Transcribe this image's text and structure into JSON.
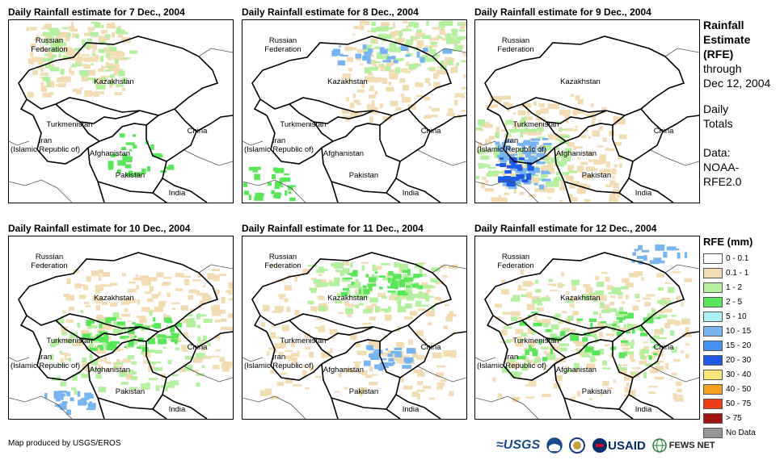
{
  "panels": [
    {
      "title": "Daily Rainfall estimate for 7 Dec., 2004",
      "day": 7
    },
    {
      "title": "Daily Rainfall estimate for 8 Dec., 2004",
      "day": 8
    },
    {
      "title": "Daily Rainfall estimate for 9 Dec., 2004",
      "day": 9
    },
    {
      "title": "Daily Rainfall estimate for 10 Dec., 2004",
      "day": 10
    },
    {
      "title": "Daily Rainfall estimate for 11 Dec., 2004",
      "day": 11
    },
    {
      "title": "Daily Rainfall estimate for 12 Dec., 2004",
      "day": 12
    }
  ],
  "countries": {
    "russia": "Russian\nFederation",
    "kazakhstan": "Kazakhstan",
    "turkmenistan": "Turkmenistan",
    "iran": "Iran\n(Islamic Republic of)",
    "afghanistan": "Afghanistan",
    "pakistan": "Pakistan",
    "china": "China",
    "india": "India"
  },
  "sidebar": {
    "head1": "Rainfall",
    "head2": "Estimate",
    "head3": "(RFE)",
    "through1": "through",
    "through2": "Dec 12, 2004",
    "totals1": "Daily",
    "totals2": "Totals",
    "data1": "Data:",
    "data2": "NOAA-",
    "data3": "RFE2.0"
  },
  "legend": {
    "title": "RFE (mm)",
    "items": [
      {
        "label": "0 - 0.1",
        "color": "#ffffff"
      },
      {
        "label": "0.1 - 1",
        "color": "#f2dcb4"
      },
      {
        "label": "1 - 2",
        "color": "#b4f0a0"
      },
      {
        "label": "2 - 5",
        "color": "#5ae65a"
      },
      {
        "label": "5 - 10",
        "color": "#aaf0f5"
      },
      {
        "label": "10 - 15",
        "color": "#78b4f0"
      },
      {
        "label": "15 - 20",
        "color": "#4690f0"
      },
      {
        "label": "20 - 30",
        "color": "#1e5ae6"
      },
      {
        "label": "30 - 40",
        "color": "#fae678"
      },
      {
        "label": "40 - 50",
        "color": "#f5a01e"
      },
      {
        "label": "50 - 75",
        "color": "#f03c14"
      },
      {
        "label": "> 75",
        "color": "#a01414"
      },
      {
        "label": "No Data",
        "color": "#969696"
      }
    ]
  },
  "footer": {
    "credit": "Map produced by USGS/EROS",
    "usgs": "≈USGS",
    "usaid": "USAID",
    "fews": "FEWS NET"
  }
}
